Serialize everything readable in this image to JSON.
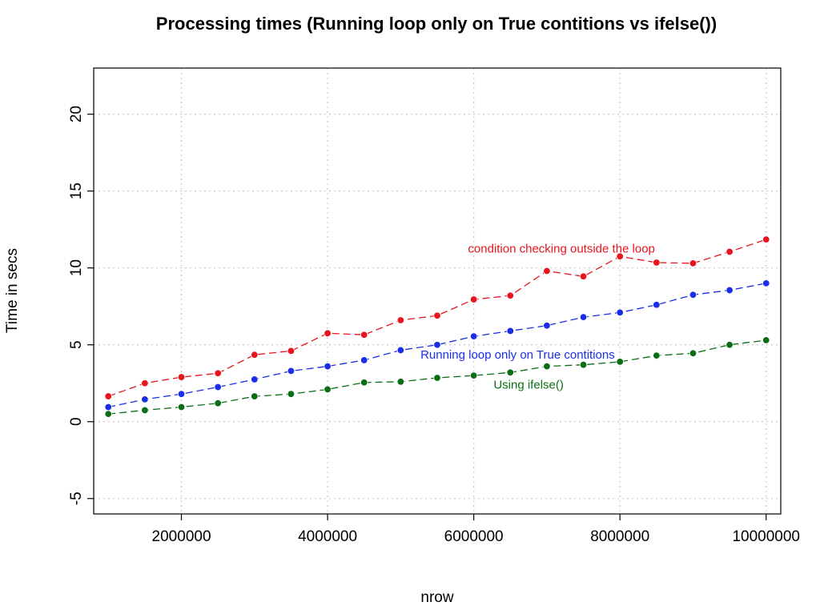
{
  "chart_data": {
    "type": "line",
    "title": "Processing times (Running loop only on True contitions vs ifelse())",
    "xlabel": "nrow",
    "ylabel": "Time in secs",
    "xlim": [
      800000,
      10200000
    ],
    "ylim": [
      -6,
      23
    ],
    "xticks": [
      2000000,
      4000000,
      6000000,
      8000000,
      10000000
    ],
    "xtick_labels": [
      "2000000",
      "4000000",
      "6000000",
      "8000000",
      "10000000"
    ],
    "yticks": [
      -5,
      0,
      5,
      10,
      15,
      20
    ],
    "ytick_labels": [
      "-5",
      "0",
      "5",
      "10",
      "15",
      "20"
    ],
    "grid": true,
    "x": [
      1000000,
      1500000,
      2000000,
      2500000,
      3000000,
      3500000,
      4000000,
      4500000,
      5000000,
      5500000,
      6000000,
      6500000,
      7000000,
      7500000,
      8000000,
      8500000,
      9000000,
      9500000,
      10000000
    ],
    "series": [
      {
        "color": "#e8141e",
        "values": [
          1.65,
          2.5,
          2.9,
          3.15,
          4.35,
          4.6,
          5.75,
          5.65,
          6.6,
          6.9,
          7.95,
          8.2,
          9.8,
          9.45,
          10.75,
          10.35,
          10.3,
          11.05,
          11.85
        ],
        "annotation": {
          "text": "condition checking outside the loop",
          "x": 7200000,
          "y": 11.25
        }
      },
      {
        "color": "#1a2ee8",
        "values": [
          0.95,
          1.45,
          1.8,
          2.25,
          2.75,
          3.3,
          3.6,
          4.0,
          4.65,
          5.0,
          5.55,
          5.9,
          6.25,
          6.8,
          7.1,
          7.6,
          8.25,
          8.55,
          9.0
        ],
        "annotation": {
          "text": "Running loop only on True contitions",
          "x": 6600000,
          "y": 4.35
        }
      },
      {
        "color": "#0b6e14",
        "values": [
          0.5,
          0.75,
          0.95,
          1.2,
          1.65,
          1.8,
          2.1,
          2.55,
          2.6,
          2.85,
          3.0,
          3.2,
          3.6,
          3.7,
          3.9,
          4.3,
          4.45,
          5.0,
          5.3
        ],
        "annotation": {
          "text": "Using ifelse()",
          "x": 6750000,
          "y": 2.4
        }
      }
    ]
  }
}
